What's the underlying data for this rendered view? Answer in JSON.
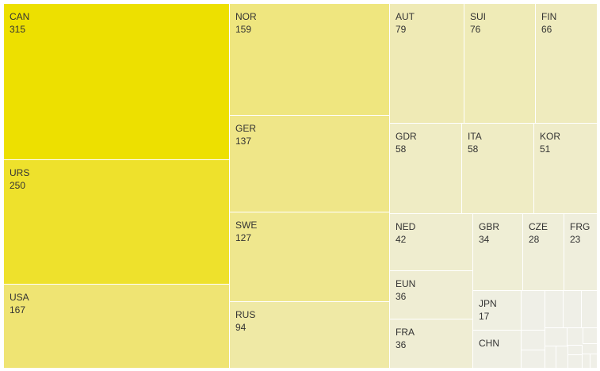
{
  "chart_data": {
    "type": "treemap",
    "items": [
      {
        "label": "CAN",
        "value": 315,
        "color": "#ede000"
      },
      {
        "label": "URS",
        "value": 250,
        "color": "#eee12c"
      },
      {
        "label": "USA",
        "value": 167,
        "color": "#efe473"
      },
      {
        "label": "NOR",
        "value": 159,
        "color": "#efe67f"
      },
      {
        "label": "GER",
        "value": 137,
        "color": "#efe688"
      },
      {
        "label": "SWE",
        "value": 127,
        "color": "#efe78e"
      },
      {
        "label": "RUS",
        "value": 94,
        "color": "#efe9a5"
      },
      {
        "label": "AUT",
        "value": 79,
        "color": "#efeab5"
      },
      {
        "label": "SUI",
        "value": 76,
        "color": "#efebb7"
      },
      {
        "label": "FIN",
        "value": 66,
        "color": "#efebbe"
      },
      {
        "label": "GDR",
        "value": 58,
        "color": "#efecc4"
      },
      {
        "label": "ITA",
        "value": 58,
        "color": "#efecc4"
      },
      {
        "label": "KOR",
        "value": 51,
        "color": "#efecc9"
      },
      {
        "label": "NED",
        "value": 42,
        "color": "#efedcf"
      },
      {
        "label": "EUN",
        "value": 36,
        "color": "#efedd3"
      },
      {
        "label": "FRA",
        "value": 36,
        "color": "#efedd3"
      },
      {
        "label": "GBR",
        "value": 34,
        "color": "#efeed5"
      },
      {
        "label": "CZE",
        "value": 28,
        "color": "#efeed9"
      },
      {
        "label": "FRG",
        "value": 23,
        "color": "#efeedc"
      },
      {
        "label": "JPN",
        "value": 17,
        "color": "#efefe1"
      },
      {
        "label": "CHN",
        "value": null,
        "color": "#efefe3"
      }
    ],
    "unlabeled_small_cells": 16,
    "unlabeled_color": "#efefe7"
  }
}
